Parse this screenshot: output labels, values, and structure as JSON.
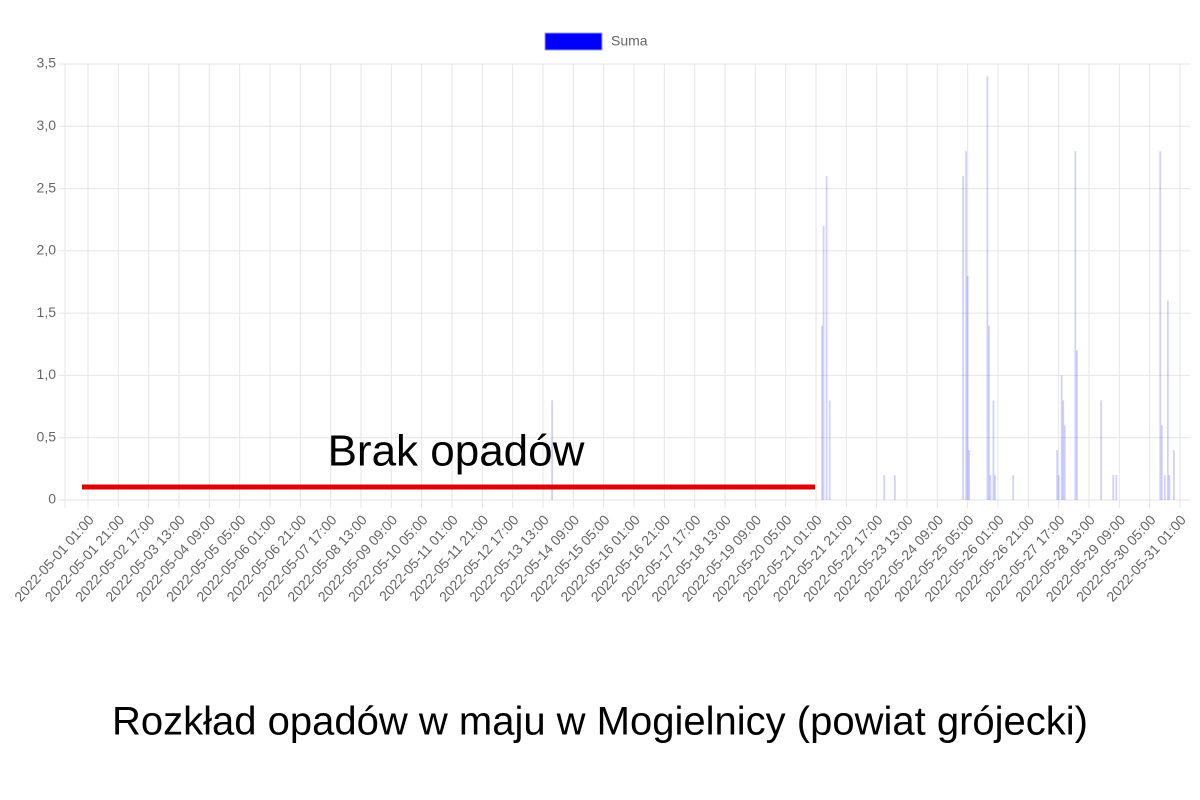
{
  "chart_data": {
    "type": "bar",
    "title": "Rozkład opadów w maju w Mogielnicy (powiat grójecki)",
    "annotation": "Brak opadów",
    "legend": "top",
    "grid": true,
    "x": [
      "2022-05-13 19:00",
      "2022-05-21 05:00",
      "2022-05-21 06:00",
      "2022-05-21 08:00",
      "2022-05-21 10:00",
      "2022-05-22 22:00",
      "2022-05-23 05:00",
      "2022-05-25 02:00",
      "2022-05-25 04:00",
      "2022-05-25 05:00",
      "2022-05-25 06:00",
      "2022-05-25 18:00",
      "2022-05-25 19:00",
      "2022-05-25 20:00",
      "2022-05-25 22:00",
      "2022-05-25 23:00",
      "2022-05-26 11:00",
      "2022-05-27 16:00",
      "2022-05-27 17:00",
      "2022-05-27 19:00",
      "2022-05-27 20:00",
      "2022-05-27 21:00",
      "2022-05-28 04:00",
      "2022-05-28 05:00",
      "2022-05-28 21:00",
      "2022-05-29 05:00",
      "2022-05-29 07:00",
      "2022-05-30 12:00",
      "2022-05-30 13:00",
      "2022-05-30 15:00",
      "2022-05-30 17:00",
      "2022-05-30 18:00",
      "2022-05-30 21:00"
    ],
    "series": [
      {
        "name": "Suma",
        "color": "#0000ff",
        "values": [
          0.8,
          1.4,
          2.2,
          2.6,
          0.8,
          0.2,
          0.2,
          2.6,
          2.8,
          1.8,
          0.4,
          3.4,
          1.4,
          0.2,
          0.8,
          0.2,
          0.2,
          0.4,
          0.2,
          1.0,
          0.8,
          0.6,
          2.8,
          1.2,
          0.8,
          0.2,
          0.2,
          2.8,
          0.6,
          0.2,
          1.6,
          0.2,
          0.4
        ]
      }
    ],
    "xlim": [
      "2022-05-01 01:00",
      "2022-05-31 01:00"
    ],
    "xticks": [
      "2022-05-01 01:00",
      "2022-05-01 21:00",
      "2022-05-02 17:00",
      "2022-05-03 13:00",
      "2022-05-04 09:00",
      "2022-05-05 05:00",
      "2022-05-06 01:00",
      "2022-05-06 21:00",
      "2022-05-07 17:00",
      "2022-05-08 13:00",
      "2022-05-09 09:00",
      "2022-05-10 05:00",
      "2022-05-11 01:00",
      "2022-05-11 21:00",
      "2022-05-12 17:00",
      "2022-05-13 13:00",
      "2022-05-14 09:00",
      "2022-05-15 05:00",
      "2022-05-16 01:00",
      "2022-05-16 21:00",
      "2022-05-17 17:00",
      "2022-05-18 13:00",
      "2022-05-19 09:00",
      "2022-05-20 05:00",
      "2022-05-21 01:00",
      "2022-05-21 21:00",
      "2022-05-22 17:00",
      "2022-05-23 13:00",
      "2022-05-24 09:00",
      "2022-05-25 05:00",
      "2022-05-26 01:00",
      "2022-05-26 21:00",
      "2022-05-27 17:00",
      "2022-05-28 13:00",
      "2022-05-29 09:00",
      "2022-05-30 05:00",
      "2022-05-31 01:00"
    ],
    "ylim": [
      0,
      3.5
    ],
    "yticks": [
      0,
      {
        "value": 0.5,
        "label": "0,5"
      },
      {
        "value": 1,
        "label": "1,0"
      },
      {
        "value": 1.5,
        "label": "1,5"
      },
      {
        "value": 2,
        "label": "2,0"
      },
      {
        "value": 2.5,
        "label": "2,5"
      },
      {
        "value": 3,
        "label": "3,0"
      },
      {
        "value": 3.5,
        "label": "3,5"
      }
    ]
  }
}
